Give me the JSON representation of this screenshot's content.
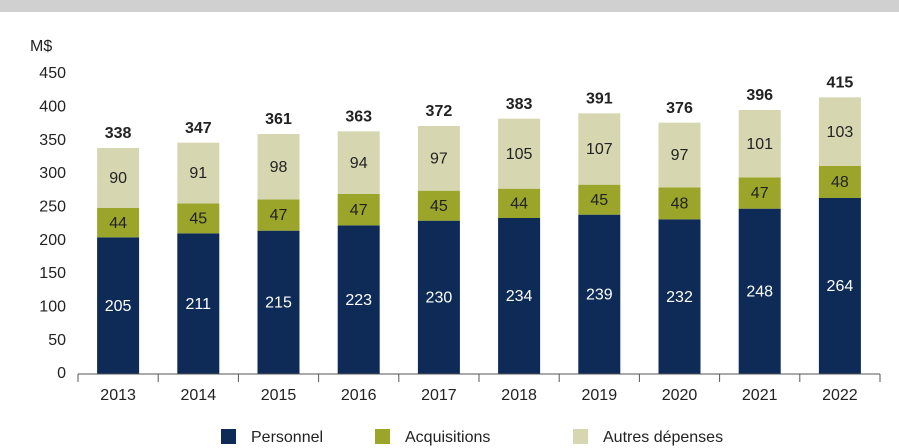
{
  "chart_data": {
    "type": "stacked_bar",
    "ylabel": "M$",
    "categories": [
      "2013",
      "2014",
      "2015",
      "2016",
      "2017",
      "2018",
      "2019",
      "2020",
      "2021",
      "2022"
    ],
    "series": [
      {
        "name": "Personnel",
        "color": "#0d2b56",
        "values": [
          205,
          211,
          215,
          223,
          230,
          234,
          239,
          232,
          248,
          264
        ]
      },
      {
        "name": "Acquisitions",
        "color": "#9aa52a",
        "values": [
          44,
          45,
          47,
          47,
          45,
          44,
          45,
          48,
          47,
          48
        ]
      },
      {
        "name": "Autres dépenses",
        "color": "#d6d7b1",
        "values": [
          90,
          91,
          98,
          94,
          97,
          105,
          107,
          97,
          101,
          103
        ]
      }
    ],
    "totals": [
      338,
      347,
      361,
      363,
      372,
      383,
      391,
      376,
      396,
      415
    ],
    "ylim": [
      0,
      450
    ],
    "yticks": [
      0,
      50,
      100,
      150,
      200,
      250,
      300,
      350,
      400,
      450
    ]
  }
}
